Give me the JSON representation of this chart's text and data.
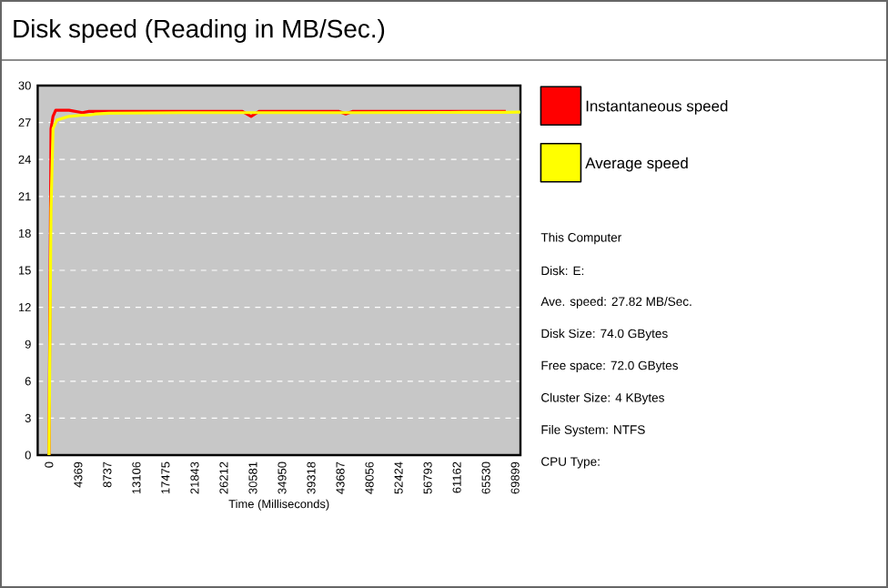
{
  "chart_data": {
    "type": "line",
    "title": "Disk speed (Reading in MB/Sec.)",
    "xlabel": "Time (Milliseconds)",
    "x": [
      0,
      300,
      600,
      1000,
      1200,
      3000,
      5000,
      6000,
      7000,
      9000,
      20000,
      29000,
      30300,
      31500,
      43500,
      44500,
      45500,
      60000,
      68500,
      70700
    ],
    "series": [
      {
        "name": "Instantaneous speed",
        "color": "#ff0000",
        "values": [
          0,
          26.5,
          27.5,
          28.0,
          28.0,
          28.0,
          27.8,
          27.9,
          27.9,
          27.9,
          27.9,
          27.9,
          27.5,
          27.9,
          27.9,
          27.7,
          27.9,
          27.9,
          27.9,
          null
        ]
      },
      {
        "name": "Average speed",
        "color": "#ffff00",
        "values": [
          0,
          20,
          26.5,
          27.0,
          27.2,
          27.5,
          27.6,
          27.6,
          27.7,
          27.75,
          27.8,
          27.8,
          27.8,
          27.8,
          27.8,
          27.8,
          27.8,
          27.82,
          27.83,
          27.85
        ]
      }
    ],
    "xlim": [
      -1700,
      70700
    ],
    "ylim": [
      0,
      30
    ],
    "xticks": [
      0,
      4369,
      8737,
      13106,
      17475,
      21843,
      26212,
      30581,
      34950,
      39318,
      43687,
      48056,
      52424,
      56793,
      61162,
      65530,
      69899
    ],
    "yticks": [
      0,
      3,
      6,
      9,
      12,
      15,
      18,
      21,
      24,
      27,
      30
    ],
    "grid": "y",
    "legend": "right",
    "marker": "none",
    "line_style": "solid",
    "annotations": [
      "This Computer",
      "Disk: E:",
      "Ave. speed: 27.82 MB/Sec.",
      "Disk Size: 74.0 GBytes",
      "Free space: 72.0 GBytes",
      "Cluster Size: 4 KBytes",
      "File System: NTFS",
      "CPU Type:"
    ]
  }
}
